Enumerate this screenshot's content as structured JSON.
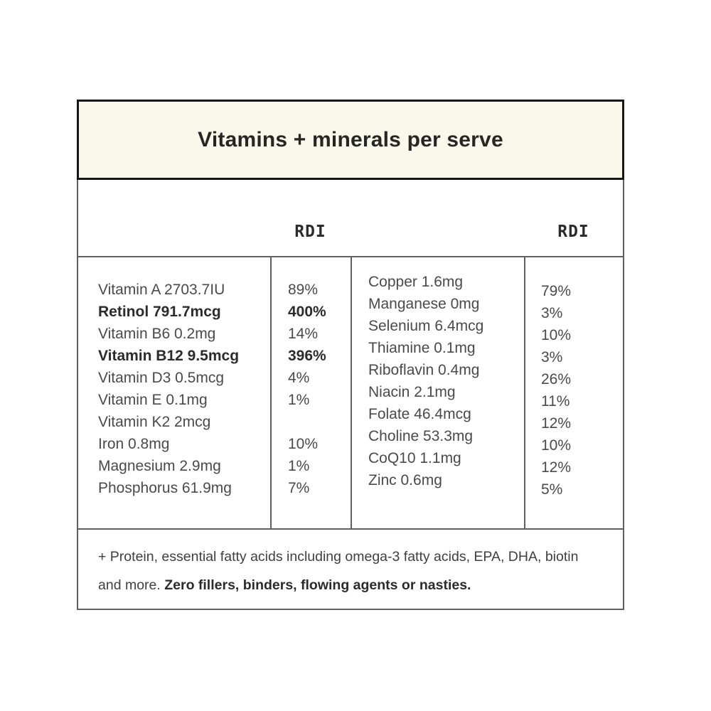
{
  "header": {
    "title": "Vitamins + minerals per serve"
  },
  "table": {
    "rdi_header_left": "RDI",
    "rdi_header_right": "RDI",
    "left_rows": [
      {
        "name": "Vitamin A 2703.7IU",
        "rdi": "89%",
        "bold": false
      },
      {
        "name": "Retinol 791.7mcg",
        "rdi": "400%",
        "bold": true
      },
      {
        "name": "Vitamin B6 0.2mg",
        "rdi": "14%",
        "bold": false
      },
      {
        "name": "Vitamin B12 9.5mcg",
        "rdi": "396%",
        "bold": true
      },
      {
        "name": "Vitamin D3 0.5mcg",
        "rdi": "4%",
        "bold": false
      },
      {
        "name": "Vitamin E 0.1mg",
        "rdi": "1%",
        "bold": false
      },
      {
        "name": "Vitamin K2 2mcg",
        "rdi": "",
        "bold": false
      },
      {
        "name": "Iron 0.8mg",
        "rdi": "10%",
        "bold": false
      },
      {
        "name": "Magnesium 2.9mg",
        "rdi": "1%",
        "bold": false
      },
      {
        "name": "Phosphorus 61.9mg",
        "rdi": "7%",
        "bold": false
      }
    ],
    "right_rows": [
      {
        "name": "Copper 1.6mg",
        "rdi": "79%",
        "bold": false
      },
      {
        "name": "Manganese 0mg",
        "rdi": "3%",
        "bold": false
      },
      {
        "name": "Selenium 6.4mcg",
        "rdi": "10%",
        "bold": false
      },
      {
        "name": "Thiamine 0.1mg",
        "rdi": "3%",
        "bold": false
      },
      {
        "name": "Riboflavin 0.4mg",
        "rdi": "26%",
        "bold": false
      },
      {
        "name": "Niacin 2.1mg",
        "rdi": "11%",
        "bold": false
      },
      {
        "name": "Folate 46.4mcg",
        "rdi": "12%",
        "bold": false
      },
      {
        "name": "Choline 53.3mg",
        "rdi": "10%",
        "bold": false
      },
      {
        "name": "CoQ10 1.1mg",
        "rdi": "12%",
        "bold": false
      },
      {
        "name": "Zinc 0.6mg",
        "rdi": "5%",
        "bold": false
      }
    ]
  },
  "footer": {
    "text_regular": "+ Protein, essential fatty acids including omega-3 fatty acids, EPA, DHA, biotin and more. ",
    "text_bold": "Zero fillers, binders, flowing agents or nasties."
  },
  "colors": {
    "header_bg": "#faf8ea",
    "header_border": "#161616",
    "line": "#606060",
    "text": "#4a4a4a"
  }
}
